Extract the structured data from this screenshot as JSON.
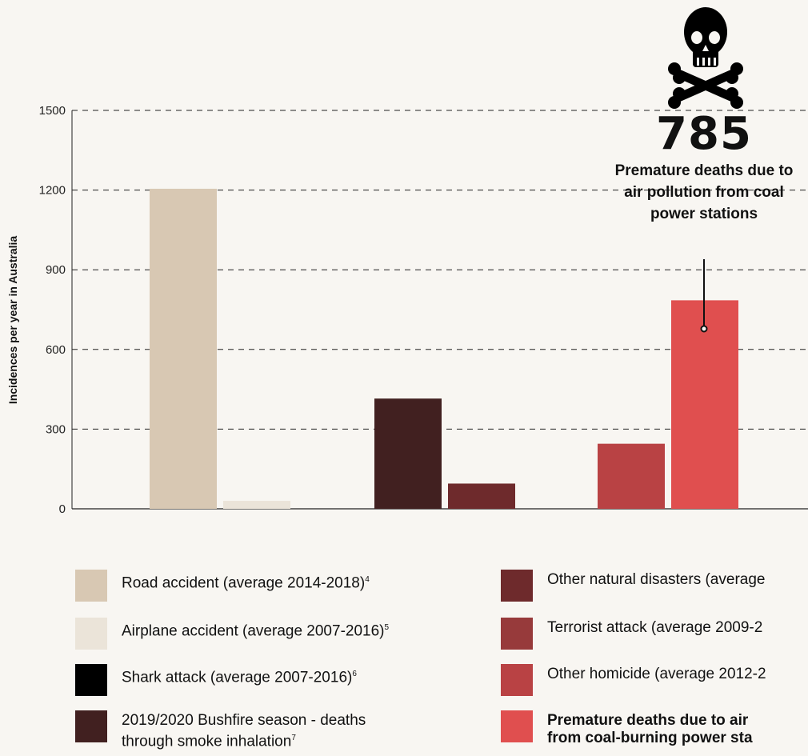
{
  "chart_data": {
    "type": "bar",
    "ylabel": "Incidences per year in Australia",
    "ylim": [
      0,
      1500
    ],
    "yticks": [
      0,
      300,
      600,
      900,
      1200,
      1500
    ],
    "grid": "dashed horizontal",
    "groups": [
      {
        "bars": [
          {
            "series": "Road accident (average 2014-2018)",
            "value": 1205,
            "color": "#d8c8b3"
          },
          {
            "series": "Airplane accident (average 2007-2016)",
            "value": 30,
            "color": "#ebe4d9"
          }
        ]
      },
      {
        "bars": [
          {
            "series": "2019/2020 Bushfire season - deaths through smoke inhalation",
            "value": 415,
            "color": "#412020"
          },
          {
            "series": "Other natural disasters",
            "value": 95,
            "color": "#6e2a2c"
          }
        ]
      },
      {
        "bars": [
          {
            "series": "Other homicide",
            "value": 245,
            "color": "#b94244"
          },
          {
            "series": "Premature deaths due to air pollution from coal-burning power stations",
            "value": 785,
            "color": "#e04f4f"
          }
        ]
      }
    ],
    "annotation": {
      "value": "785",
      "text": "Premature deaths due to air pollution from coal power stations"
    }
  },
  "legend": {
    "left": [
      {
        "label": "Road accident (average 2014-2018)",
        "sup": "4",
        "color": "#d8c8b3",
        "bold": false
      },
      {
        "label": "Airplane accident (average 2007-2016)",
        "sup": "5",
        "color": "#ebe4d9",
        "bold": false
      },
      {
        "label": "Shark attack (average 2007-2016)",
        "sup": "6",
        "color": "#000000",
        "bold": false
      },
      {
        "label": "2019/2020 Bushfire season - deaths",
        "label2": "through smoke inhalation",
        "sup": "7",
        "color": "#412020",
        "bold": false
      }
    ],
    "right": [
      {
        "label": "Other natural disasters (average",
        "color": "#6e2a2c",
        "bold": false
      },
      {
        "label": "Terrorist attack (average 2009-2",
        "color": "#973a3b",
        "bold": false
      },
      {
        "label": "Other homicide (average 2012-2",
        "color": "#b94244",
        "bold": false
      },
      {
        "label": "Premature deaths due to air",
        "label2": "from coal-burning power sta",
        "color": "#e04f4f",
        "bold": true
      }
    ]
  },
  "icons": {
    "callout": "skull-crossbones-icon"
  }
}
